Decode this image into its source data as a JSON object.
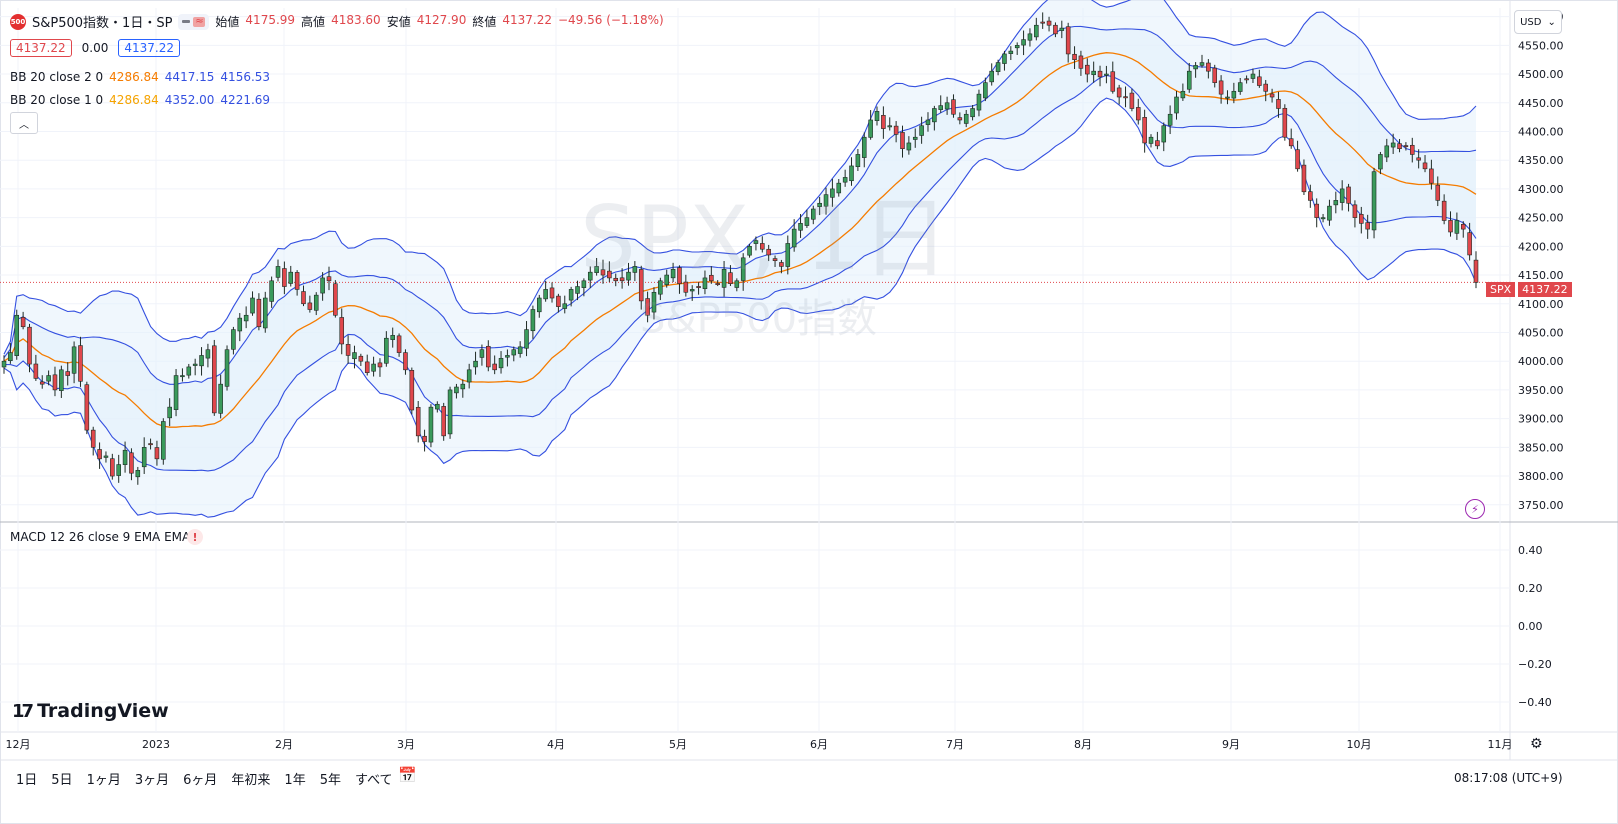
{
  "header": {
    "logo_text": "500",
    "symbol_title": "S&P500指数・1日・SP",
    "ohlc": [
      {
        "label": "始値",
        "value": "4175.99"
      },
      {
        "label": "高値",
        "value": "4183.60"
      },
      {
        "label": "安値",
        "value": "4127.90"
      },
      {
        "label": "終値",
        "value": "4137.22"
      }
    ],
    "change": "−49.56 (−1.18%)",
    "bid": "4137.22",
    "spread": "0.00",
    "ask": "4137.22"
  },
  "indicators": {
    "bb2": {
      "name": "BB 20 close 2 0",
      "basis": "4286.84",
      "upper": "4417.15",
      "lower": "4156.53"
    },
    "bb1": {
      "name": "BB 20 close 1 0",
      "basis": "4286.84",
      "upper": "4352.00",
      "lower": "4221.69"
    },
    "macd": {
      "name": "MACD 12 26 close 9 EMA EMA",
      "warning": "!"
    }
  },
  "watermark": {
    "main": "SPX, 1日",
    "sub": "S&P500指数"
  },
  "currency_button": "USD",
  "last_price_tag": {
    "symbol": "SPX",
    "price": "4137.22"
  },
  "branding": "TradingView",
  "timeframes": [
    "1日",
    "5日",
    "1ヶ月",
    "3ヶ月",
    "6ヶ月",
    "年初来",
    "1年",
    "5年",
    "すべて"
  ],
  "clock": "08:17:08 (UTC+9)",
  "colors": {
    "up": "#26a69a",
    "up_candle": "#3a9a5b",
    "down": "#e0474c",
    "basis": "#f57c00",
    "band": "#3450e0",
    "band_fill": "#e3f0fb",
    "border": "#e0e3eb"
  },
  "chart_data": {
    "type": "candlestick",
    "price_axis": {
      "ticks": [
        3750,
        3800,
        3850,
        3900,
        3950,
        4000,
        4050,
        4100,
        4150,
        4200,
        4250,
        4300,
        4350,
        4400,
        4450,
        4500,
        4550,
        4600
      ],
      "ylim": [
        3720,
        4615
      ]
    },
    "macd_axis": {
      "ticks": [
        "0.40",
        "0.20",
        "0.00",
        "−0.20",
        "−0.40"
      ]
    },
    "x_axis_labels": [
      "12月",
      "2023",
      "2月",
      "3月",
      "4月",
      "5月",
      "6月",
      "7月",
      "8月",
      "9月",
      "10月",
      "11月"
    ],
    "last_price": 4137.22,
    "close_series": [
      4000,
      4015,
      4080,
      4060,
      3995,
      3970,
      3960,
      3975,
      3950,
      3985,
      3975,
      4025,
      3965,
      3880,
      3850,
      3830,
      3835,
      3800,
      3820,
      3845,
      3805,
      3810,
      3850,
      3855,
      3830,
      3895,
      3920,
      3975,
      3975,
      3990,
      3995,
      4010,
      4020,
      3910,
      3960,
      4020,
      4055,
      4075,
      4080,
      4110,
      4060,
      4110,
      4140,
      4165,
      4130,
      4155,
      4125,
      4100,
      4090,
      4115,
      4145,
      4140,
      4080,
      4030,
      4010,
      4015,
      4000,
      3980,
      3995,
      3990,
      4040,
      4045,
      4015,
      3985,
      3915,
      3870,
      3860,
      3920,
      3925,
      3870,
      3950,
      3955,
      3960,
      3985,
      4000,
      4020,
      3990,
      3985,
      4005,
      4010,
      4020,
      4025,
      4055,
      4090,
      4110,
      4125,
      4110,
      4095,
      4100,
      4125,
      4130,
      4140,
      4155,
      4165,
      4150,
      4145,
      4140,
      4140,
      4155,
      4165,
      4105,
      4080,
      4120,
      4140,
      4150,
      4160,
      4135,
      4120,
      4125,
      4130,
      4145,
      4140,
      4135,
      4160,
      4135,
      4140,
      4180,
      4200,
      4210,
      4195,
      4185,
      4175,
      4165,
      4205,
      4230,
      4240,
      4250,
      4265,
      4275,
      4290,
      4300,
      4310,
      4320,
      4340,
      4360,
      4390,
      4420,
      4435,
      4405,
      4410,
      4395,
      4370,
      4380,
      4390,
      4410,
      4420,
      4440,
      4445,
      4450,
      4430,
      4420,
      4430,
      4440,
      4465,
      4485,
      4505,
      4520,
      4535,
      4540,
      4550,
      4560,
      4570,
      4585,
      4590,
      4585,
      4570,
      4580,
      4535,
      4525,
      4510,
      4500,
      4505,
      4495,
      4500,
      4470,
      4460,
      4460,
      4440,
      4420,
      4380,
      4390,
      4375,
      4410,
      4430,
      4460,
      4470,
      4505,
      4515,
      4520,
      4505,
      4485,
      4465,
      4460,
      4470,
      4485,
      4490,
      4500,
      4480,
      4470,
      4460,
      4440,
      4390,
      4375,
      4335,
      4295,
      4280,
      4250,
      4250,
      4270,
      4280,
      4300,
      4275,
      4250,
      4240,
      4230,
      4330,
      4360,
      4375,
      4380,
      4370,
      4375,
      4360,
      4350,
      4335,
      4310,
      4280,
      4245,
      4225,
      4245,
      4230,
      4185,
      4137.22
    ]
  }
}
